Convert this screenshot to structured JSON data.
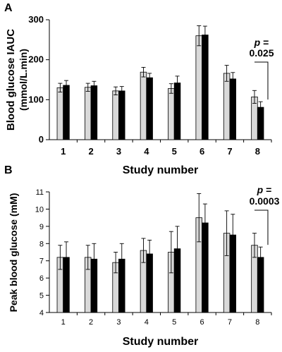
{
  "chart_data": [
    {
      "panel": "A",
      "type": "bar",
      "xlabel": "Study number",
      "ylabel": "Blood glucose IAUC (mmol/L.min)",
      "categories": [
        "1",
        "2",
        "3",
        "4",
        "5",
        "6",
        "7",
        "8"
      ],
      "ylim": [
        0,
        300
      ],
      "yticks": [
        "0",
        "100",
        "200",
        "300"
      ],
      "series": [
        {
          "color": "#d9d9d9",
          "values": [
            130,
            131,
            122,
            169,
            128,
            260,
            166,
            107
          ],
          "errors": [
            11,
            10,
            10,
            12,
            12,
            25,
            20,
            16
          ]
        },
        {
          "color": "#000000",
          "values": [
            136,
            135,
            122,
            155,
            142,
            262,
            152,
            81
          ],
          "errors": [
            12,
            11,
            11,
            11,
            17,
            22,
            16,
            14
          ]
        }
      ],
      "annotation": {
        "p_label": "p =",
        "p_value": "0.025",
        "category": "8"
      }
    },
    {
      "panel": "B",
      "type": "bar",
      "xlabel": "Study number",
      "ylabel": "Peak blood glucose (mM)",
      "categories": [
        "1",
        "2",
        "3",
        "4",
        "5",
        "6",
        "7",
        "8"
      ],
      "ylim": [
        4,
        11
      ],
      "yticks": [
        "4",
        "5",
        "6",
        "7",
        "8",
        "9",
        "10",
        "11"
      ],
      "series": [
        {
          "color": "#d9d9d9",
          "values": [
            7.2,
            7.2,
            6.9,
            7.6,
            7.5,
            9.5,
            8.6,
            7.9
          ],
          "errors": [
            0.7,
            0.7,
            0.6,
            0.7,
            1.2,
            1.4,
            1.3,
            0.7
          ]
        },
        {
          "color": "#000000",
          "values": [
            7.2,
            7.1,
            7.1,
            7.4,
            7.7,
            9.2,
            8.5,
            7.2
          ],
          "errors": [
            0.9,
            0.9,
            0.9,
            0.8,
            1.3,
            1.1,
            1.2,
            0.6
          ]
        }
      ],
      "annotation": {
        "p_label": "p =",
        "p_value": "0.0003",
        "category": "8"
      }
    }
  ]
}
